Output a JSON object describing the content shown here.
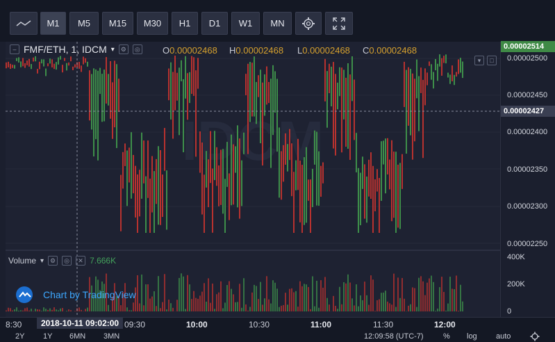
{
  "toolbar": {
    "buttons": [
      "M1",
      "M5",
      "M15",
      "M30",
      "H1",
      "D1",
      "W1",
      "MN"
    ],
    "active": "M1",
    "icons": [
      "line-chart-icon",
      "gear-icon",
      "fullscreen-icon"
    ]
  },
  "legend": {
    "symbol": "FMF/ETH, 1, IDCM",
    "o_label": "O",
    "o": "0.00002468",
    "h_label": "H",
    "h": "0.00002468",
    "l_label": "L",
    "l": "0.00002468",
    "c_label": "C",
    "c": "0.00002468"
  },
  "price_axis": {
    "labels": [
      "0.00002500",
      "0.00002450",
      "0.00002400",
      "0.00002350",
      "0.00002300",
      "0.00002250"
    ],
    "current_price": "0.00002514",
    "crosshair_price": "0.00002427",
    "up_color": "#3e8f4a",
    "down_color": "#b8322f"
  },
  "volume": {
    "label": "Volume",
    "value": "7.666K",
    "axis_labels": [
      "400K",
      "200K",
      "0"
    ]
  },
  "time_axis": {
    "labels": [
      "8:30",
      "09:30",
      "10:00",
      "10:30",
      "11:00",
      "11:30",
      "12:00"
    ],
    "hover_label": "2018-10-11 09:02:00"
  },
  "watermark": "IDCM",
  "branding": "Chart by TradingView",
  "footer": {
    "ranges": [
      "2Y",
      "1Y",
      "6MN",
      "3MN"
    ],
    "clock": "12:09:58 (UTC-7)",
    "percent": "%",
    "log": "log",
    "auto": "auto"
  }
}
